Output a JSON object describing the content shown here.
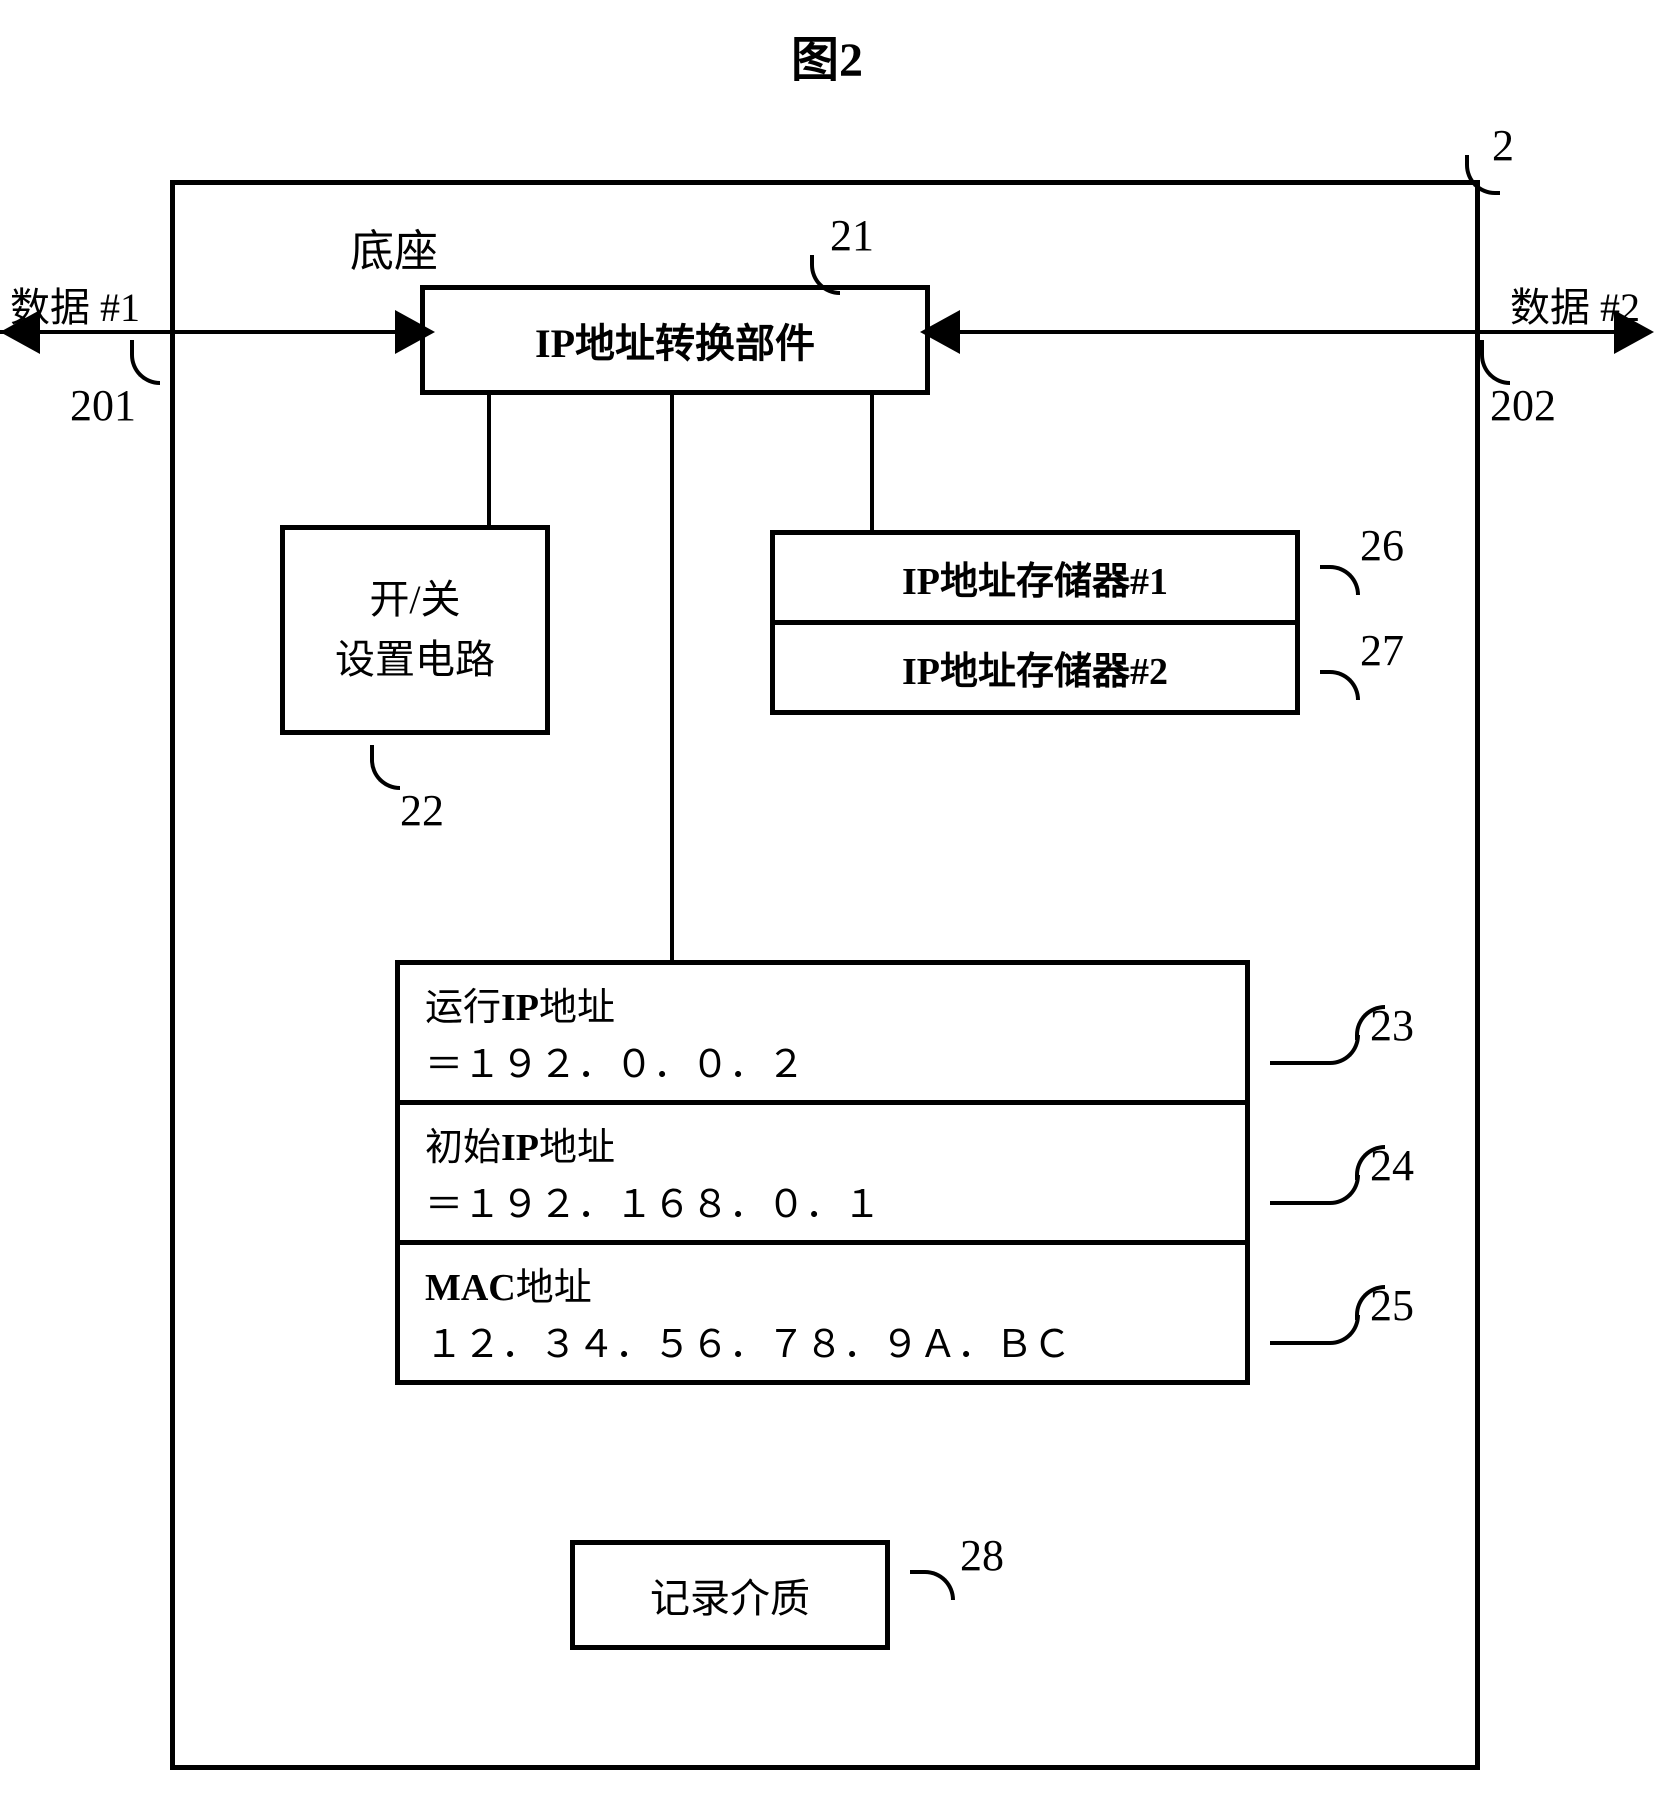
{
  "figure_title": "图2",
  "block_ref_2": "2",
  "base_label": "底座",
  "ip_convert_label": "IP地址转换部件",
  "label_21": "21",
  "data1_label": "数据 #1",
  "label_201": "201",
  "data2_label": "数据 #2",
  "label_202": "202",
  "onoff_line1": "开/关",
  "onoff_line2": "设置电路",
  "label_22": "22",
  "mem1_label": "IP地址存储器#1",
  "mem2_label": "IP地址存储器#2",
  "label_26": "26",
  "label_27": "27",
  "addr23_title_prefix": "运行",
  "addr23_title_bold": "IP",
  "addr23_title_suffix": "地址",
  "addr23_value": "＝１９２．０．０．２",
  "addr24_title_prefix": "初始",
  "addr24_title_bold": "IP",
  "addr24_title_suffix": "地址",
  "addr24_value": "＝１９２．１６８．０．１",
  "addr25_title_bold": "MAC",
  "addr25_title_suffix": "地址",
  "addr25_value": "１２．３４．５６．７８．９Ａ．ＢＣ",
  "label_23": "23",
  "label_24": "24",
  "label_25": "25",
  "media_label": "记录介质",
  "label_28": "28"
}
